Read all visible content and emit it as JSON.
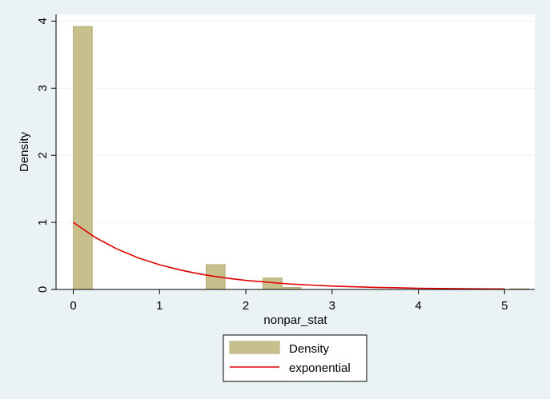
{
  "chart_data": {
    "type": "bar",
    "xlabel": "nonpar_stat",
    "ylabel": "Density",
    "xlim": [
      -0.2,
      5.35
    ],
    "ylim": [
      0,
      4.1
    ],
    "xticks": [
      0,
      1,
      2,
      3,
      4,
      5
    ],
    "xtick_labels": [
      "0",
      "1",
      "2",
      "3",
      "4",
      "5"
    ],
    "yticks": [
      0,
      1,
      2,
      3,
      4
    ],
    "ytick_labels": [
      "0",
      "1",
      "2",
      "3",
      "4"
    ],
    "grid": true,
    "legend_position": "bottom",
    "bin_width": 0.22,
    "histogram": {
      "name": "Density",
      "color": "#c8c08c",
      "edge_color": "#b5ad78",
      "bins": [
        {
          "start": 0.0,
          "value": 3.92
        },
        {
          "start": 1.54,
          "value": 0.37
        },
        {
          "start": 2.2,
          "value": 0.17
        },
        {
          "start": 2.42,
          "value": 0.03
        },
        {
          "start": 5.06,
          "value": 0.01
        }
      ]
    },
    "curve": {
      "name": "exponential",
      "color": "#e00000",
      "function": "exp(-x)",
      "x": [
        0,
        0.25,
        0.5,
        0.75,
        1,
        1.25,
        1.5,
        1.75,
        2,
        2.5,
        3,
        3.5,
        4,
        4.5,
        5
      ],
      "y": [
        1.0,
        0.779,
        0.607,
        0.472,
        0.368,
        0.287,
        0.223,
        0.174,
        0.135,
        0.082,
        0.05,
        0.03,
        0.018,
        0.011,
        0.007
      ]
    },
    "legend": [
      {
        "label": "Density",
        "kind": "bar"
      },
      {
        "label": "exponential",
        "kind": "line"
      }
    ]
  }
}
